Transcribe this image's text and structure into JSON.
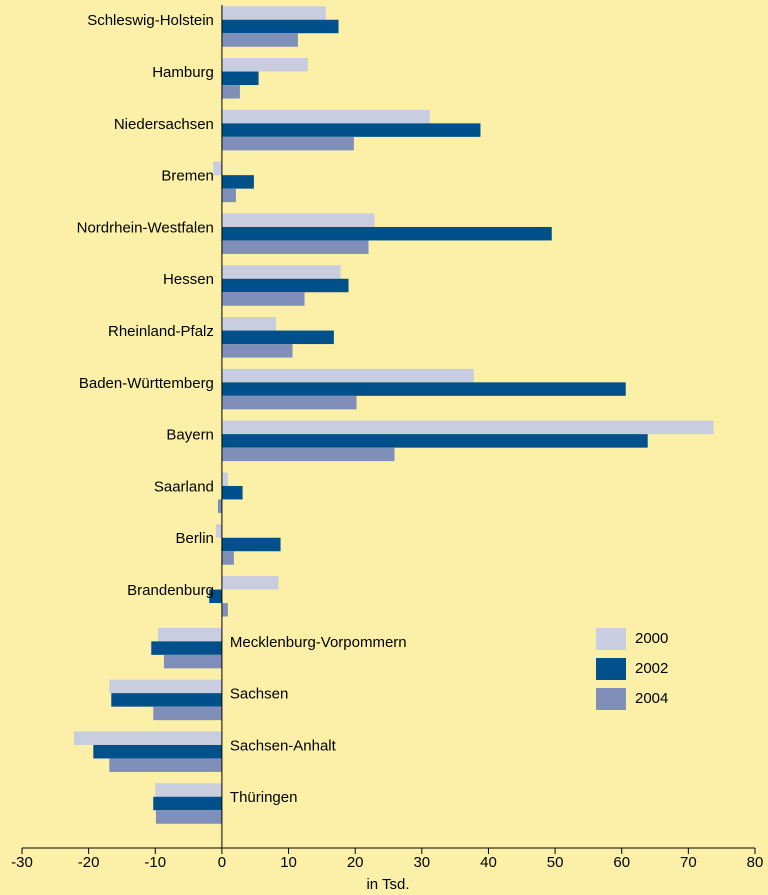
{
  "chart_data": {
    "type": "hbar",
    "x_label": "in Tsd.",
    "categories": [
      "Schleswig-Holstein",
      "Hamburg",
      "Niedersachsen",
      "Bremen",
      "Nordrhein-Westfalen",
      "Hessen",
      "Rheinland-Pfalz",
      "Baden-Württemberg",
      "Bayern",
      "Saarland",
      "Berlin",
      "Brandenburg",
      "Mecklenburg-Vorpommern",
      "Sachsen",
      "Sachsen-Anhalt",
      "Thüringen"
    ],
    "series": [
      {
        "name": "2000",
        "color": "#c8cde0",
        "values": [
          15.6,
          12.9,
          31.2,
          -1.3,
          22.9,
          17.8,
          8.1,
          37.8,
          73.8,
          0.9,
          -0.9,
          8.5,
          -9.6,
          -16.9,
          -22.2,
          -10.0
        ]
      },
      {
        "name": "2002",
        "color": "#00508c",
        "values": [
          17.5,
          5.5,
          38.8,
          4.8,
          49.5,
          19.0,
          16.8,
          60.6,
          63.9,
          3.1,
          8.8,
          -1.9,
          -10.6,
          -16.6,
          -19.3,
          -10.3
        ]
      },
      {
        "name": "2004",
        "color": "#7f8fba",
        "values": [
          11.4,
          2.7,
          19.8,
          2.1,
          22.0,
          12.4,
          10.6,
          20.2,
          25.9,
          -0.6,
          1.8,
          0.9,
          -8.7,
          -10.3,
          -16.9,
          -9.9
        ]
      }
    ],
    "xlim": [
      -30,
      80
    ],
    "xticks": [
      -30,
      -20,
      -10,
      0,
      10,
      20,
      30,
      40,
      50,
      60,
      70,
      80
    ],
    "legend": "right"
  }
}
